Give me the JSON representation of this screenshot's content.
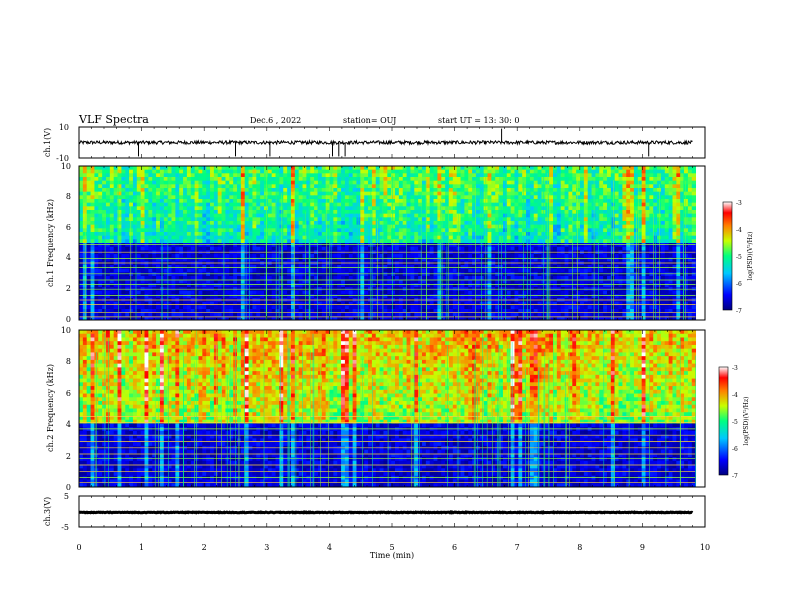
{
  "header": {
    "title": "VLF Spectra",
    "date": "Dec.6 , 2022",
    "station": "station= OUJ",
    "start": "start UT = 13: 30: 0"
  },
  "chart_data": [
    {
      "type": "line",
      "ylabel": "ch.1(V)",
      "ylim": [
        -10,
        10
      ],
      "yticks": [
        "10",
        "-10"
      ],
      "xlim": [
        0,
        10
      ],
      "baseline": 0,
      "spikes_min": [
        0.95,
        2.5,
        3.05,
        4.05,
        4.15,
        4.25,
        6.75,
        9.1
      ],
      "color": "#000000"
    },
    {
      "type": "heatmap",
      "ylabel": "ch.1 Frequency (kHz)",
      "ylim": [
        0,
        10
      ],
      "yticks": [
        "0",
        "2",
        "4",
        "6",
        "8",
        "10"
      ],
      "xlim": [
        0,
        9.85
      ],
      "colorbar": {
        "label": "log(PSD)(V²/Hz)",
        "ticks": [
          "-3",
          "-4",
          "-5",
          "-6",
          "-7"
        ],
        "range": [
          -7,
          -3
        ]
      },
      "band_edge_khz": 5.0,
      "upper_band_level": -5.3,
      "lower_band_level": -6.6,
      "lines_khz": [
        0.2,
        0.5,
        1.0,
        1.3,
        1.6,
        2.0,
        2.3,
        2.6,
        3.0,
        3.4,
        3.7,
        4.0,
        4.4,
        4.9
      ]
    },
    {
      "type": "heatmap",
      "ylabel": "ch.2 Frequency (kHz)",
      "ylim": [
        0,
        10
      ],
      "yticks": [
        "0",
        "2",
        "4",
        "6",
        "8",
        "10"
      ],
      "xlim": [
        0,
        9.85
      ],
      "colorbar": {
        "label": "log(PSD)(V²/Hz)",
        "ticks": [
          "-3",
          "-4",
          "-5",
          "-6",
          "-7"
        ],
        "range": [
          -7,
          -3
        ]
      },
      "band_edge_khz": 4.0,
      "upper_band_level": -4.6,
      "lower_band_level": -6.6,
      "lines_khz": [
        0.3,
        0.6,
        1.0,
        1.4,
        1.8,
        2.1,
        2.5,
        2.9,
        3.3,
        3.7,
        4.1,
        4.5
      ]
    },
    {
      "type": "line",
      "ylabel": "ch.3(V)",
      "ylim": [
        -5,
        5
      ],
      "yticks": [
        "5",
        "-5"
      ],
      "xlim": [
        0,
        10
      ],
      "baseline": -0.3,
      "color": "#000000"
    }
  ],
  "xaxis": {
    "label": "Time (min)",
    "ticks": [
      "0",
      "1",
      "2",
      "3",
      "4",
      "5",
      "6",
      "7",
      "8",
      "9",
      "10"
    ]
  }
}
